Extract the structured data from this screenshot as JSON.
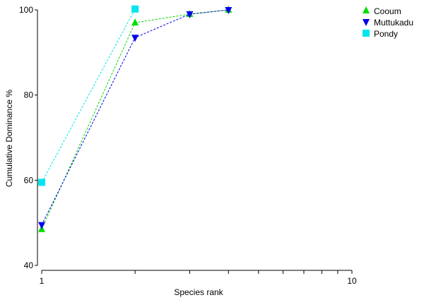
{
  "chart_data": {
    "type": "line",
    "xscale": "log",
    "xlim": [
      1,
      10
    ],
    "ylim": [
      40,
      100
    ],
    "xlabel": "Species rank",
    "ylabel": "Cumulative Dominance %",
    "x_ticks": [
      {
        "value": 1,
        "label": "1"
      },
      {
        "value": 2,
        "label": ""
      },
      {
        "value": 3,
        "label": ""
      },
      {
        "value": 4,
        "label": ""
      },
      {
        "value": 5,
        "label": ""
      },
      {
        "value": 6,
        "label": ""
      },
      {
        "value": 7,
        "label": ""
      },
      {
        "value": 8,
        "label": ""
      },
      {
        "value": 9,
        "label": ""
      },
      {
        "value": 10,
        "label": "10"
      }
    ],
    "y_ticks": [
      {
        "value": 40,
        "label": "40"
      },
      {
        "value": 60,
        "label": "60"
      },
      {
        "value": 80,
        "label": "80"
      },
      {
        "value": 100,
        "label": "100"
      }
    ],
    "legend_position": "top-right",
    "series": [
      {
        "name": "Cooum",
        "color": "#00dd00",
        "marker": "triangle-up",
        "x": [
          1,
          2,
          3,
          4
        ],
        "y": [
          48.5,
          97,
          99,
          100
        ]
      },
      {
        "name": "Muttukadu",
        "color": "#0000ee",
        "marker": "triangle-down",
        "x": [
          1,
          2,
          3,
          4
        ],
        "y": [
          49.5,
          93.5,
          99,
          100
        ]
      },
      {
        "name": "Pondy",
        "color": "#00e5ee",
        "marker": "square",
        "x": [
          1,
          2
        ],
        "y": [
          59.5,
          100.2
        ]
      }
    ]
  }
}
